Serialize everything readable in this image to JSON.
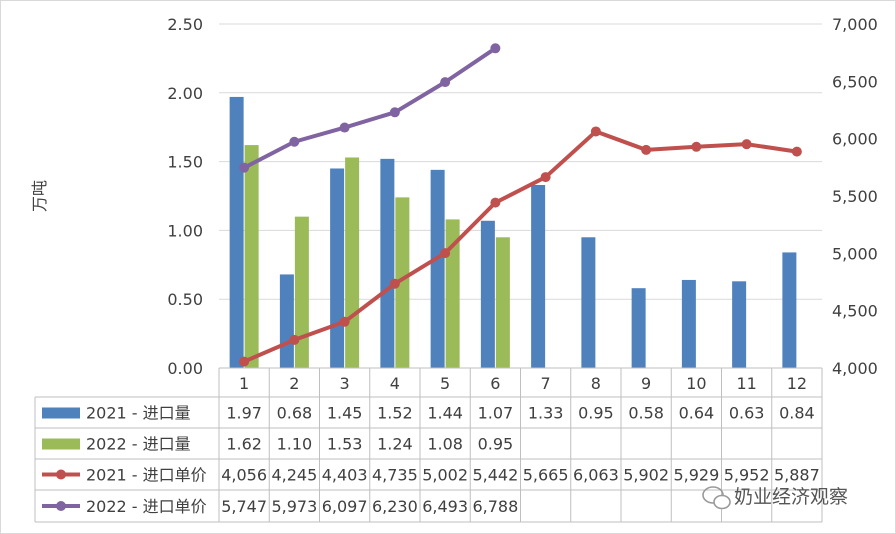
{
  "chart_data": {
    "type": "combo-bar-line-with-data-table",
    "categories": [
      "1",
      "2",
      "3",
      "4",
      "5",
      "6",
      "7",
      "8",
      "9",
      "10",
      "11",
      "12"
    ],
    "ylabel": "万吨",
    "y_left": {
      "range": [
        0,
        2.5
      ],
      "ticks": [
        "0.00",
        "0.50",
        "1.00",
        "1.50",
        "2.00",
        "2.50"
      ]
    },
    "y_right": {
      "range": [
        4000,
        7000
      ],
      "ticks": [
        "4,000",
        "4,500",
        "5,000",
        "5,500",
        "6,000",
        "6,500",
        "7,000"
      ]
    },
    "series": [
      {
        "name": "2021 - 进口量",
        "kind": "bar",
        "axis": "left",
        "color": "#4F81BD",
        "values": [
          1.97,
          0.68,
          1.45,
          1.52,
          1.44,
          1.07,
          1.33,
          0.95,
          0.58,
          0.64,
          0.63,
          0.84
        ],
        "labels": [
          "1.97",
          "0.68",
          "1.45",
          "1.52",
          "1.44",
          "1.07",
          "1.33",
          "0.95",
          "0.58",
          "0.64",
          "0.63",
          "0.84"
        ]
      },
      {
        "name": "2022 - 进口量",
        "kind": "bar",
        "axis": "left",
        "color": "#9BBB59",
        "values": [
          1.62,
          1.1,
          1.53,
          1.24,
          1.08,
          0.95,
          null,
          null,
          null,
          null,
          null,
          null
        ],
        "labels": [
          "1.62",
          "1.10",
          "1.53",
          "1.24",
          "1.08",
          "0.95",
          "",
          "",
          "",
          "",
          "",
          ""
        ]
      },
      {
        "name": "2021 - 进口单价",
        "kind": "line",
        "axis": "right",
        "color": "#C0504D",
        "values": [
          4056,
          4245,
          4403,
          4735,
          5002,
          5442,
          5665,
          6063,
          5902,
          5929,
          5952,
          5887
        ],
        "labels": [
          "4,056",
          "4,245",
          "4,403",
          "4,735",
          "5,002",
          "5,442",
          "5,665",
          "6,063",
          "5,902",
          "5,929",
          "5,952",
          "5,887"
        ]
      },
      {
        "name": "2022 - 进口单价",
        "kind": "line",
        "axis": "right",
        "color": "#8064A2",
        "values": [
          5747,
          5973,
          6097,
          6230,
          6493,
          6788,
          null,
          null,
          null,
          null,
          null,
          null
        ],
        "labels": [
          "5,747",
          "5,973",
          "6,097",
          "6,230",
          "6,493",
          "6,788",
          "",
          "",
          "",
          "",
          "",
          ""
        ]
      }
    ]
  },
  "watermark": {
    "text": "奶业经济观察"
  }
}
